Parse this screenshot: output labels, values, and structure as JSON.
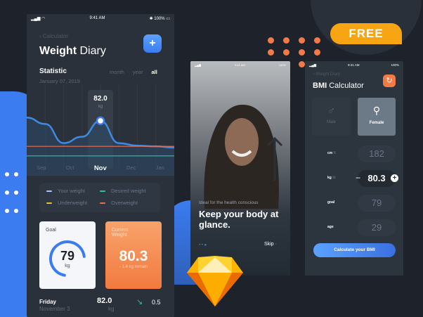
{
  "badge": "FREE",
  "colors": {
    "background": "#1e232b",
    "accent_blue": "#3b7cf0",
    "accent_orange": "#f47a45",
    "badge": "#f7a513"
  },
  "diary": {
    "status": {
      "time": "9:41 AM",
      "battery": "100%"
    },
    "back_label": "Calculator",
    "title_bold": "Weight",
    "title_rest": "Diary",
    "add_icon": "plus-icon",
    "statistic_label": "Statistic",
    "date": "January 07, 2019",
    "ranges": [
      "month",
      "year",
      "all"
    ],
    "active_range": "all",
    "tooltip": {
      "value": "82.0",
      "unit": "kg"
    },
    "legend": [
      {
        "label": "Your weight",
        "color": "#a9c8ff"
      },
      {
        "label": "Desired weight",
        "color": "#1fc7a6"
      },
      {
        "label": "Underweight",
        "color": "#e8c13a"
      },
      {
        "label": "Overweight",
        "color": "#f26b4f"
      }
    ],
    "goal": {
      "label": "Goal",
      "value": "79",
      "unit": "kg",
      "progress": 0.7
    },
    "current": {
      "label": "Current Weight",
      "value": "80.3",
      "note": "- 1.4 kg remain"
    },
    "entry": {
      "day": "Friday",
      "date": "November 3",
      "value": "82.0",
      "unit": "kg",
      "change": "0.5"
    }
  },
  "chart_data": {
    "type": "line",
    "categories": [
      "Sep",
      "Oct",
      "Nov",
      "Dec",
      "Jan"
    ],
    "selected": "Nov",
    "x": [
      0,
      0.5,
      1,
      1.5,
      2,
      2.5,
      3,
      3.5,
      4
    ],
    "series": [
      {
        "values": [
          85,
          84,
          81,
          82,
          84.5,
          81,
          80.6,
          80.5,
          80.3
        ]
      }
    ],
    "reference_lines": [
      {
        "value": 80.5,
        "color": "#f26b4f"
      },
      {
        "value": 79,
        "color": "#1fc7a6"
      }
    ],
    "ylim": [
      77,
      88
    ]
  },
  "onboard": {
    "status": {
      "time": "9:41 AM",
      "battery": "100%"
    },
    "subtitle": "Ideal for the health conscious",
    "title": "Keep your body at glance.",
    "skip": "Skip",
    "page": 3,
    "pages": 3
  },
  "bmi": {
    "status": {
      "time": "9:41 AM",
      "battery": "100%"
    },
    "back_label": "Weight Diary",
    "title_bold": "BMI",
    "title_rest": "Calculator",
    "genders": [
      {
        "label": "Male",
        "icon": "male-icon"
      },
      {
        "label": "Female",
        "icon": "female-icon",
        "selected": true
      }
    ],
    "fields": [
      {
        "label": "cm",
        "alt": "ft",
        "value": "182"
      },
      {
        "label": "kg",
        "alt": "lb",
        "value": "80.3",
        "active": true
      },
      {
        "label": "goal",
        "value": "79"
      },
      {
        "label": "age",
        "value": "29"
      }
    ],
    "button": "Calculate your BMI"
  }
}
